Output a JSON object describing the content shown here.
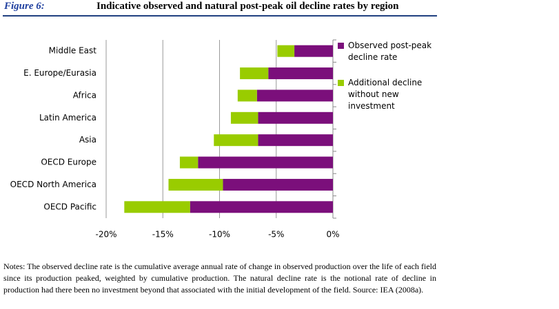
{
  "chart_data": {
    "type": "stacked-barh",
    "figure_label": "Figure 6:",
    "title": "Indicative observed and natural post-peak oil decline rates by region",
    "categories": [
      "Middle East",
      "E. Europe/Eurasia",
      "Africa",
      "Latin America",
      "Asia",
      "OECD Europe",
      "OECD North America",
      "OECD Pacific"
    ],
    "series": [
      {
        "name": "Observed post-peak decline rate",
        "color": "#7b0f7b",
        "values": [
          -3.4,
          -5.7,
          -6.7,
          -6.6,
          -6.6,
          -11.9,
          -9.7,
          -12.6
        ]
      },
      {
        "name": "Additional decline without new investment",
        "color": "#99cc00",
        "values": [
          -1.5,
          -2.5,
          -1.7,
          -2.4,
          -3.9,
          -1.6,
          -4.8,
          -5.8
        ]
      }
    ],
    "xlim": [
      -20,
      0
    ],
    "xticks": [
      {
        "value": -20,
        "label": "-20%"
      },
      {
        "value": -15,
        "label": "-15%"
      },
      {
        "value": -10,
        "label": "-10%"
      },
      {
        "value": -5,
        "label": "-5%"
      },
      {
        "value": 0,
        "label": "0%"
      }
    ],
    "grid": true,
    "notes": "Notes: The observed decline rate is the cumulative average annual rate of change in observed production over the life of each field since its production peaked, weighted by cumulative production. The natural decline rate is the notional rate of decline in production had there been no investment beyond that associated with the initial development of the field. Source: IEA (2008a)."
  }
}
